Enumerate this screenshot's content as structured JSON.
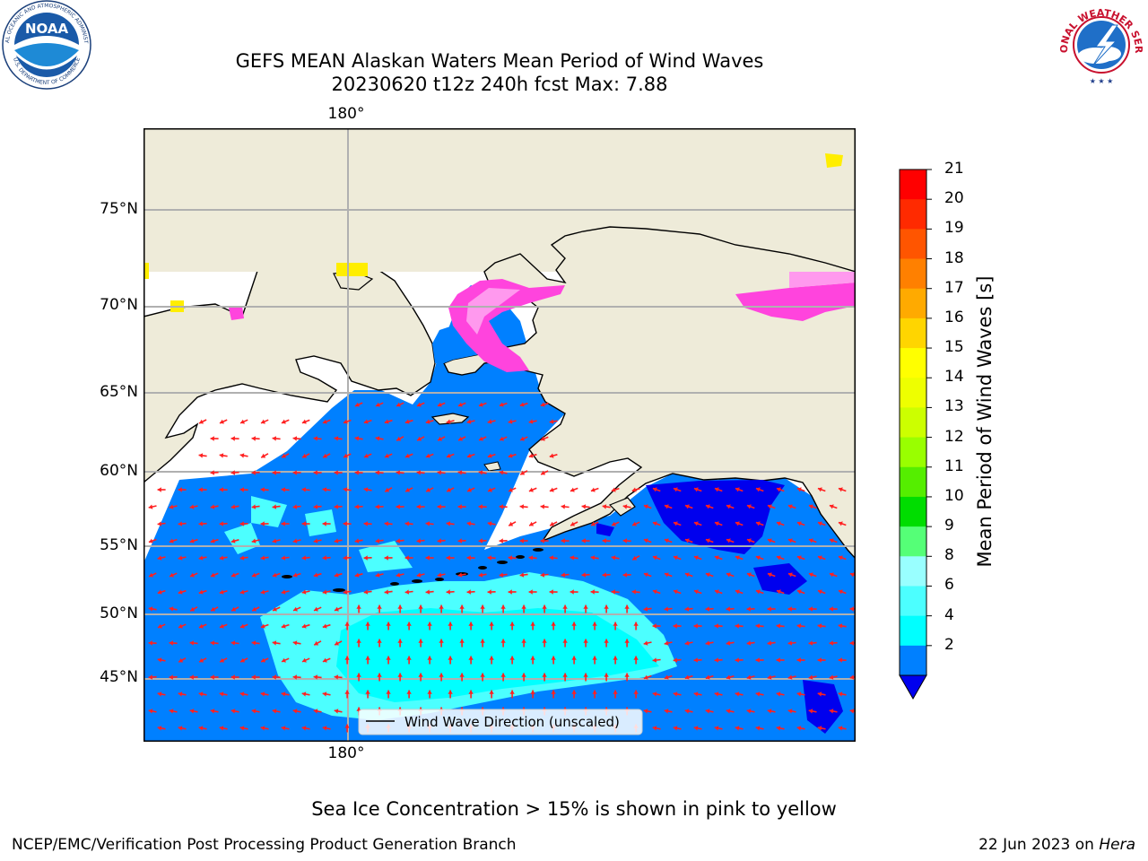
{
  "title": {
    "line1": "GEFS MEAN Alaskan Waters Mean Period of Wind Waves",
    "line2": "20230620 t12z 240h fcst   Max: 7.88"
  },
  "map": {
    "lon_label": "180°",
    "lat_labels": [
      "75°N",
      "70°N",
      "65°N",
      "60°N",
      "55°N",
      "50°N",
      "45°N"
    ],
    "legend_label": "Wind Wave Direction (unscaled)",
    "colors": {
      "land": "#eeebd9",
      "ocean_2_4": "#0080ff",
      "ocean_lt2": "#0000ee",
      "ocean_4_6": "#00ffff",
      "ocean_6_8": "#4cffff",
      "arrow": "#ff0000",
      "ice_pink": "#ff44dd",
      "ice_light": "#ff99ee",
      "ice_yellow": "#ffee00",
      "grid": "#b0b0b0"
    }
  },
  "colorbar": {
    "title": "Mean Period of Wind Waves [s]",
    "ticks": [
      "21",
      "20",
      "19",
      "18",
      "17",
      "16",
      "15",
      "14",
      "13",
      "12",
      "11",
      "10",
      "9",
      "8",
      "6",
      "4",
      "2"
    ],
    "colors": [
      "#ff0000",
      "#ff2a00",
      "#ff5500",
      "#ff8000",
      "#ffaa00",
      "#ffd500",
      "#ffff00",
      "#eeff00",
      "#ccff00",
      "#99ff00",
      "#55ee00",
      "#00dd00",
      "#55ff77",
      "#99ffff",
      "#4cffff",
      "#00ffff",
      "#0080ff"
    ],
    "under_color": "#0000ee"
  },
  "note": "Sea Ice Concentration > 15% is shown in pink to yellow",
  "footer": {
    "left": "NCEP/EMC/Verification Post Processing Product Generation Branch",
    "right_prefix": "22 Jun 2023 on ",
    "right_machine": "Hera"
  },
  "logos": {
    "noaa_text": "NOAA",
    "noaa_ring_top": "NATIONAL OCEANIC AND ATMOSPHERIC ADMINISTRATION",
    "noaa_ring_bottom": "U.S. DEPARTMENT OF COMMERCE",
    "nws_ring_top": "NATIONAL WEATHER SERVICE"
  }
}
